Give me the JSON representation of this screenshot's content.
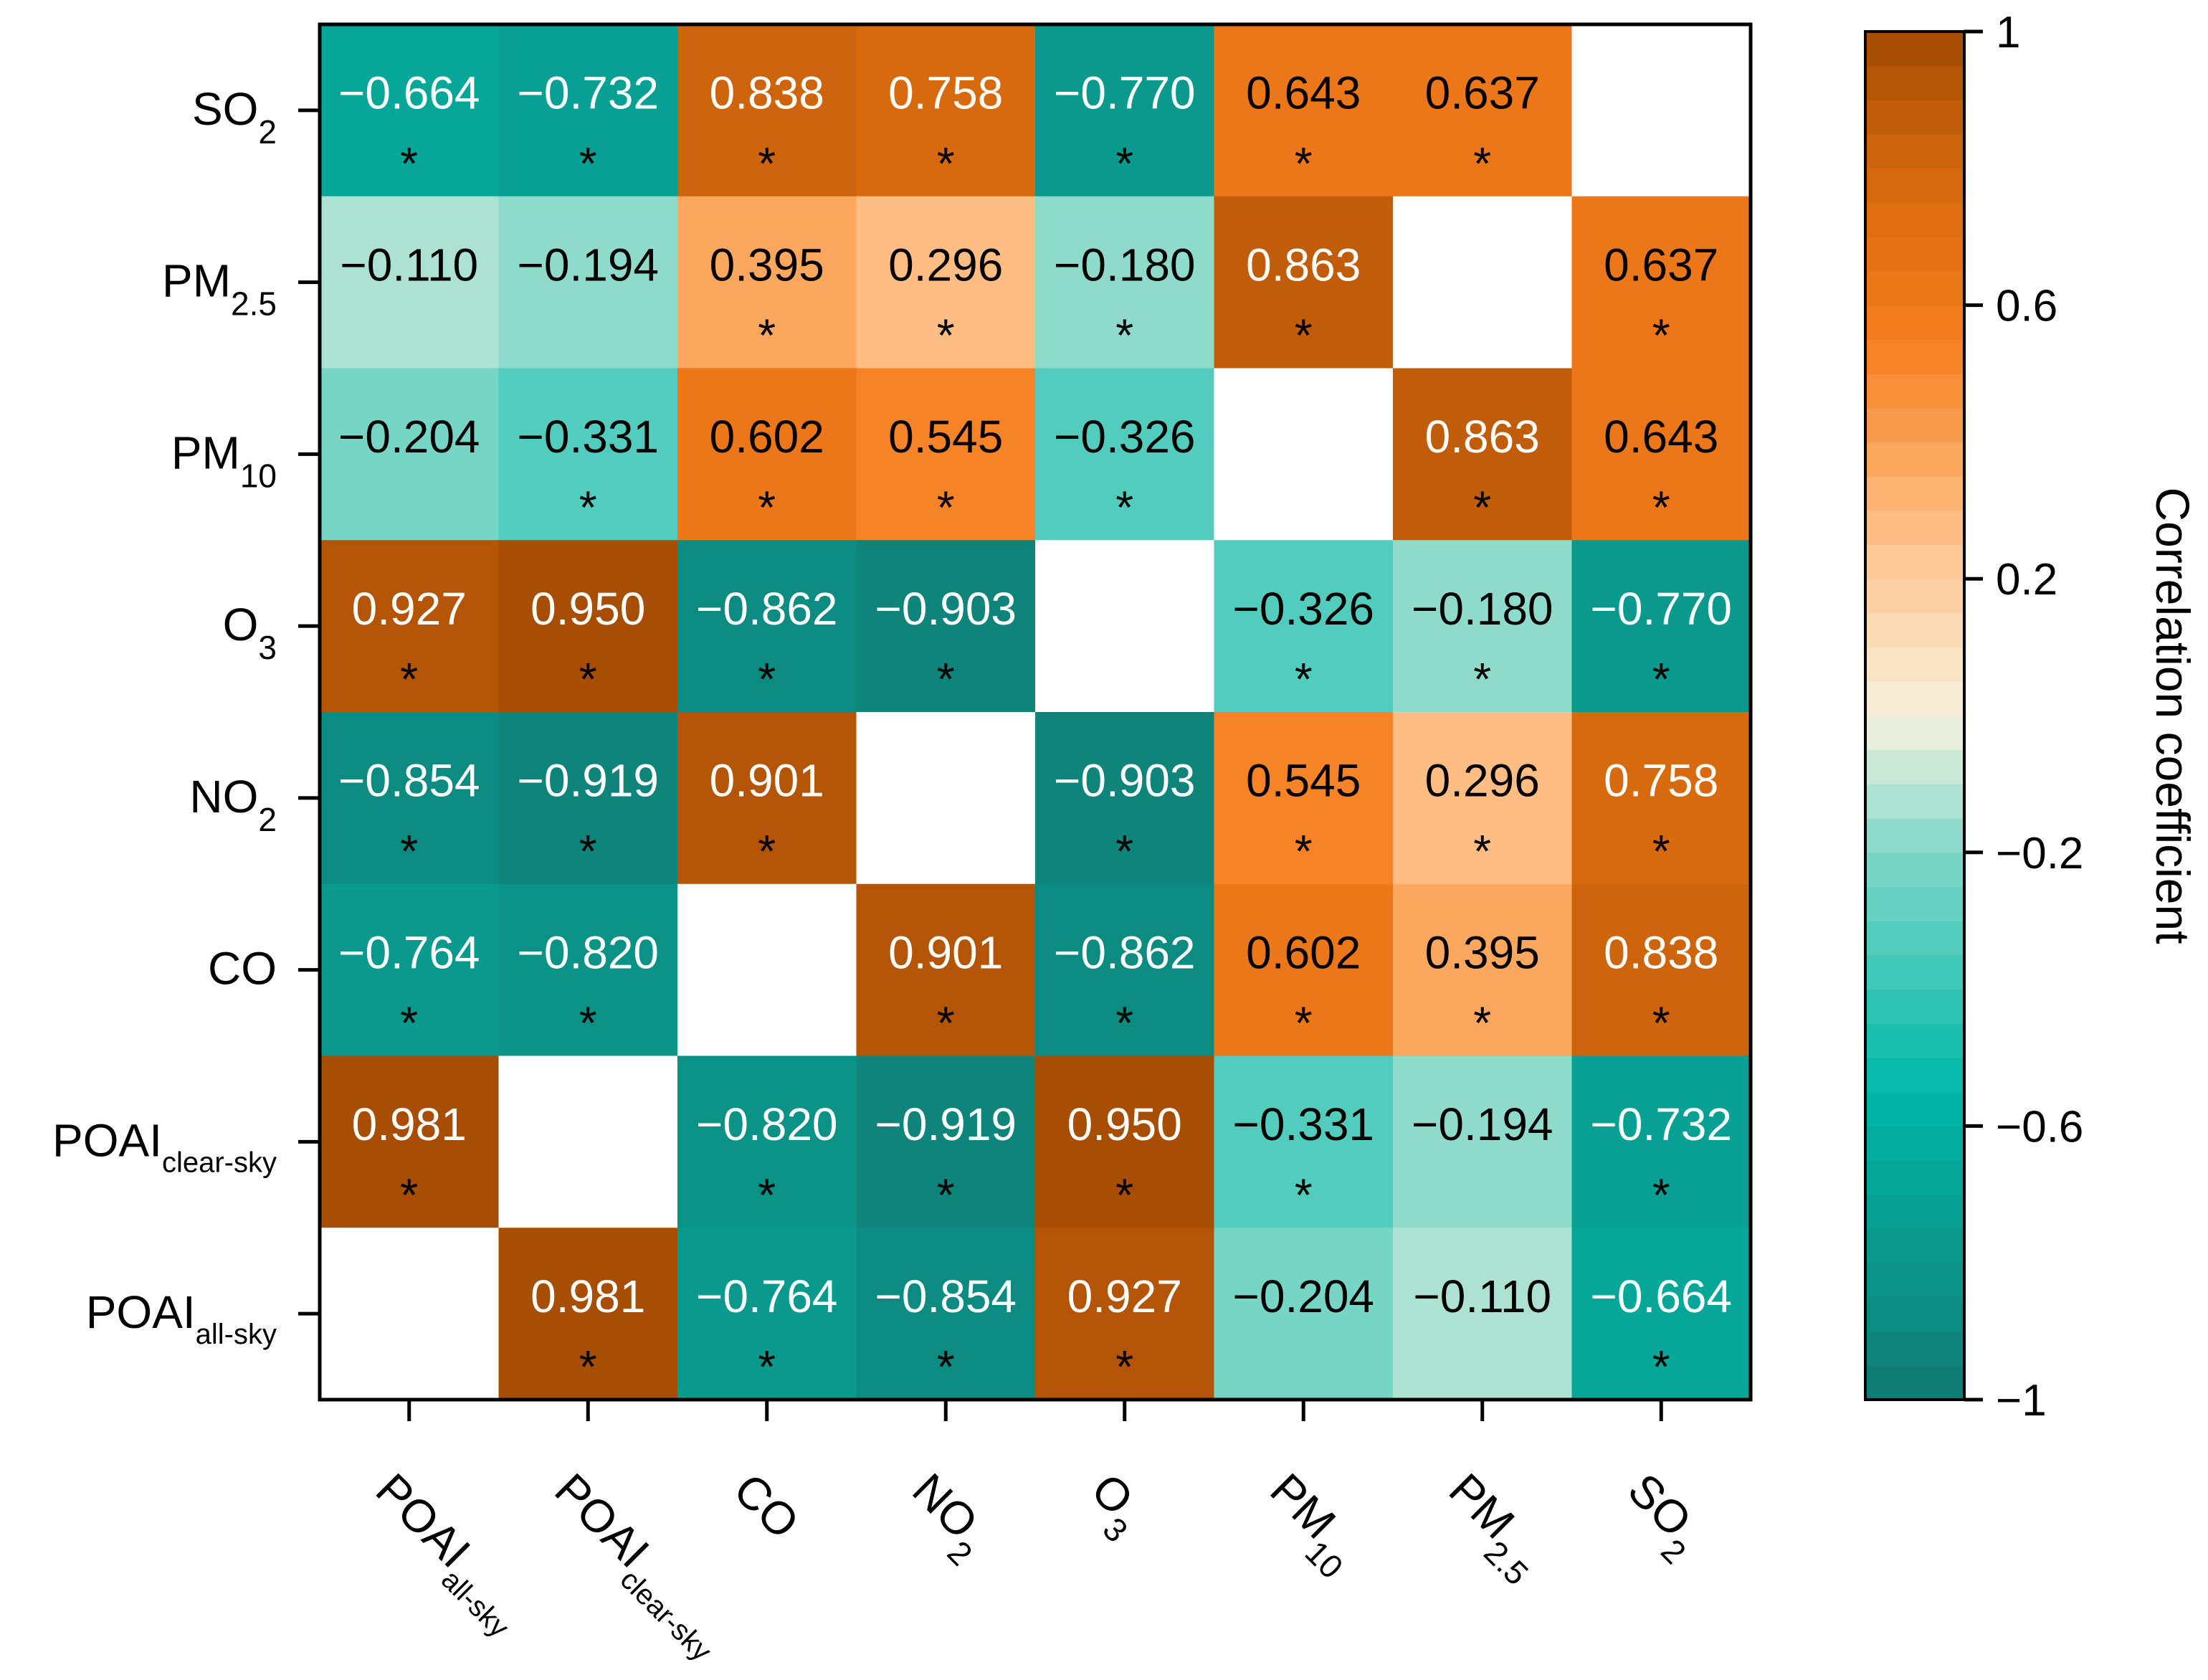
{
  "chart_data": {
    "type": "heatmap",
    "title": "",
    "x_labels": [
      {
        "base": "POAI",
        "sub": "all-sky"
      },
      {
        "base": "POAI",
        "sub": "clear-sky"
      },
      {
        "base": "CO",
        "sub": ""
      },
      {
        "base": "NO",
        "sub": "2"
      },
      {
        "base": "O",
        "sub": "3"
      },
      {
        "base": "PM",
        "sub": "10"
      },
      {
        "base": "PM",
        "sub": "2.5"
      },
      {
        "base": "SO",
        "sub": "2"
      }
    ],
    "y_labels": [
      {
        "base": "SO",
        "sub": "2"
      },
      {
        "base": "PM",
        "sub": "2.5"
      },
      {
        "base": "PM",
        "sub": "10"
      },
      {
        "base": "O",
        "sub": "3"
      },
      {
        "base": "NO",
        "sub": "2"
      },
      {
        "base": "CO",
        "sub": ""
      },
      {
        "base": "POAI",
        "sub": "clear-sky"
      },
      {
        "base": "POAI",
        "sub": "all-sky"
      }
    ],
    "cells": [
      [
        {
          "v": "−0.664",
          "s": "*",
          "n": -0.664
        },
        {
          "v": "−0.732",
          "s": "*",
          "n": -0.732
        },
        {
          "v": "0.838",
          "s": "*",
          "n": 0.838
        },
        {
          "v": "0.758",
          "s": "*",
          "n": 0.758
        },
        {
          "v": "−0.770",
          "s": "*",
          "n": -0.77
        },
        {
          "v": "0.643",
          "s": "*",
          "n": 0.643
        },
        {
          "v": "0.637",
          "s": "*",
          "n": 0.637
        },
        null
      ],
      [
        {
          "v": "−0.110",
          "s": "",
          "n": -0.11
        },
        {
          "v": "−0.194",
          "s": "",
          "n": -0.194
        },
        {
          "v": "0.395",
          "s": "*",
          "n": 0.395
        },
        {
          "v": "0.296",
          "s": "*",
          "n": 0.296
        },
        {
          "v": "−0.180",
          "s": "*",
          "n": -0.18
        },
        {
          "v": "0.863",
          "s": "*",
          "n": 0.863
        },
        null,
        {
          "v": "0.637",
          "s": "*",
          "n": 0.637
        }
      ],
      [
        {
          "v": "−0.204",
          "s": "",
          "n": -0.204
        },
        {
          "v": "−0.331",
          "s": "*",
          "n": -0.331
        },
        {
          "v": "0.602",
          "s": "*",
          "n": 0.602
        },
        {
          "v": "0.545",
          "s": "*",
          "n": 0.545
        },
        {
          "v": "−0.326",
          "s": "*",
          "n": -0.326
        },
        null,
        {
          "v": "0.863",
          "s": "*",
          "n": 0.863
        },
        {
          "v": "0.643",
          "s": "*",
          "n": 0.643
        }
      ],
      [
        {
          "v": "0.927",
          "s": "*",
          "n": 0.927
        },
        {
          "v": "0.950",
          "s": "*",
          "n": 0.95
        },
        {
          "v": "−0.862",
          "s": "*",
          "n": -0.862
        },
        {
          "v": "−0.903",
          "s": "*",
          "n": -0.903
        },
        null,
        {
          "v": "−0.326",
          "s": "*",
          "n": -0.326
        },
        {
          "v": "−0.180",
          "s": "*",
          "n": -0.18
        },
        {
          "v": "−0.770",
          "s": "*",
          "n": -0.77
        }
      ],
      [
        {
          "v": "−0.854",
          "s": "*",
          "n": -0.854
        },
        {
          "v": "−0.919",
          "s": "*",
          "n": -0.919
        },
        {
          "v": "0.901",
          "s": "*",
          "n": 0.901
        },
        null,
        {
          "v": "−0.903",
          "s": "*",
          "n": -0.903
        },
        {
          "v": "0.545",
          "s": "*",
          "n": 0.545
        },
        {
          "v": "0.296",
          "s": "*",
          "n": 0.296
        },
        {
          "v": "0.758",
          "s": "*",
          "n": 0.758
        }
      ],
      [
        {
          "v": "−0.764",
          "s": "*",
          "n": -0.764
        },
        {
          "v": "−0.820",
          "s": "*",
          "n": -0.82
        },
        null,
        {
          "v": "0.901",
          "s": "*",
          "n": 0.901
        },
        {
          "v": "−0.862",
          "s": "*",
          "n": -0.862
        },
        {
          "v": "0.602",
          "s": "*",
          "n": 0.602
        },
        {
          "v": "0.395",
          "s": "*",
          "n": 0.395
        },
        {
          "v": "0.838",
          "s": "*",
          "n": 0.838
        }
      ],
      [
        {
          "v": "0.981",
          "s": "*",
          "n": 0.981
        },
        null,
        {
          "v": "−0.820",
          "s": "*",
          "n": -0.82
        },
        {
          "v": "−0.919",
          "s": "*",
          "n": -0.919
        },
        {
          "v": "0.950",
          "s": "*",
          "n": 0.95
        },
        {
          "v": "−0.331",
          "s": "*",
          "n": -0.331
        },
        {
          "v": "−0.194",
          "s": "",
          "n": -0.194
        },
        {
          "v": "−0.732",
          "s": "*",
          "n": -0.732
        }
      ],
      [
        null,
        {
          "v": "0.981",
          "s": "*",
          "n": 0.981
        },
        {
          "v": "−0.764",
          "s": "*",
          "n": -0.764
        },
        {
          "v": "−0.854",
          "s": "*",
          "n": -0.854
        },
        {
          "v": "0.927",
          "s": "*",
          "n": 0.927
        },
        {
          "v": "−0.204",
          "s": "",
          "n": -0.204
        },
        {
          "v": "−0.110",
          "s": "",
          "n": -0.11
        },
        {
          "v": "−0.664",
          "s": "*",
          "n": -0.664
        }
      ]
    ],
    "colorbar": {
      "label": "Correlation coefficient",
      "range": [
        -1,
        1
      ],
      "ticks": [
        {
          "value": 1,
          "label": "1"
        },
        {
          "value": 0.6,
          "label": "0.6"
        },
        {
          "value": 0.2,
          "label": "0.2"
        },
        {
          "value": -0.2,
          "label": "−0.2"
        },
        {
          "value": -0.6,
          "label": "−0.6"
        },
        {
          "value": -1,
          "label": "−1"
        }
      ],
      "stops": [
        {
          "value": -1.0,
          "color": "#117a72"
        },
        {
          "value": -0.55,
          "color": "#00b8a8"
        },
        {
          "value": -0.2,
          "color": "#7fd8c8"
        },
        {
          "value": 0.0,
          "color": "#f6f2df"
        },
        {
          "value": 0.25,
          "color": "#ffc48c"
        },
        {
          "value": 0.55,
          "color": "#f57e1e"
        },
        {
          "value": 0.8,
          "color": "#d5680c"
        },
        {
          "value": 1.0,
          "color": "#a04a02"
        }
      ],
      "levels": 40
    }
  }
}
